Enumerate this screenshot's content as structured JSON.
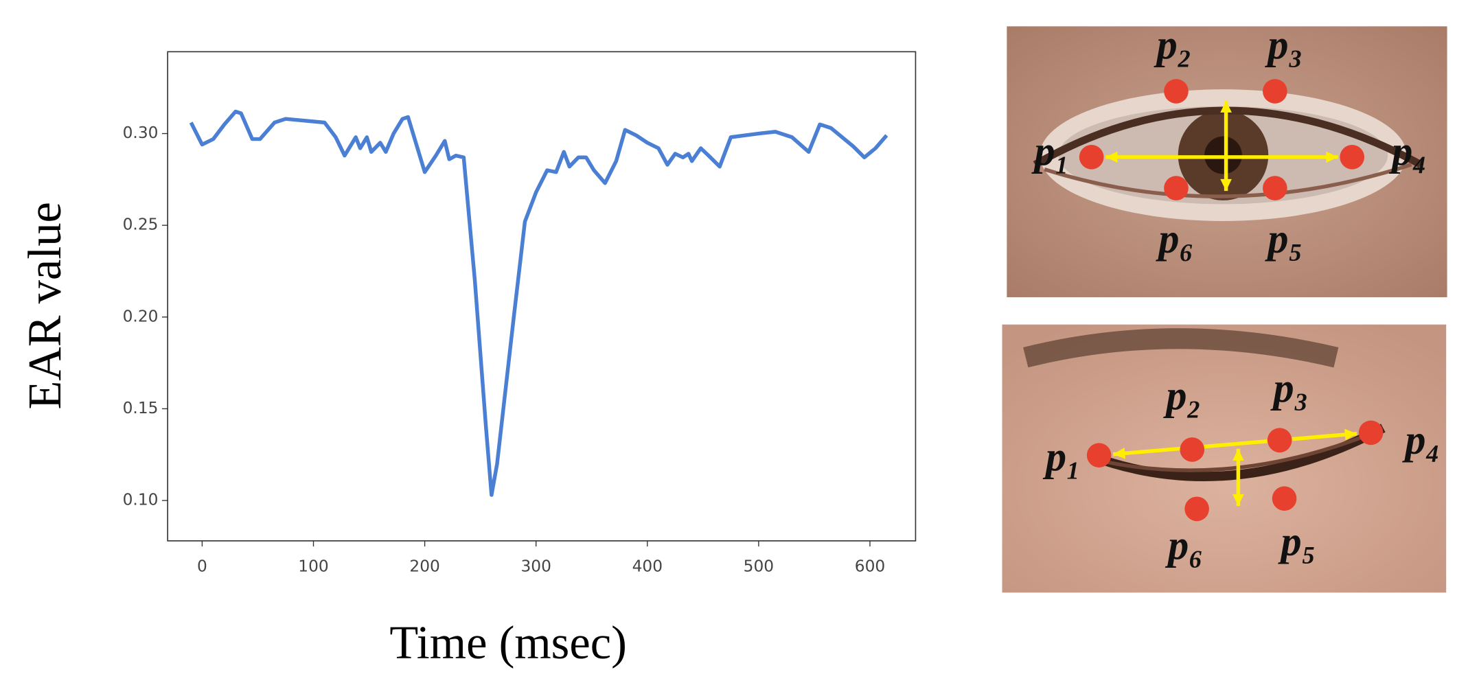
{
  "chart_data": {
    "type": "line",
    "xlabel": "Time (msec)",
    "ylabel": "EAR value",
    "x": [
      -10,
      0,
      10,
      20,
      30,
      35,
      45,
      52,
      65,
      75,
      110,
      120,
      128,
      138,
      142,
      148,
      152,
      160,
      165,
      172,
      180,
      185,
      192,
      200,
      210,
      218,
      222,
      228,
      235,
      245,
      255,
      260,
      265,
      280,
      290,
      300,
      310,
      318,
      325,
      330,
      338,
      345,
      352,
      362,
      372,
      380,
      390,
      400,
      410,
      418,
      425,
      432,
      437,
      440,
      448,
      455,
      465,
      475,
      500,
      515,
      530,
      545,
      555,
      565,
      585,
      595,
      605,
      615
    ],
    "series": [
      {
        "color": "#4a7fd4",
        "values": [
          0.306,
          0.294,
          0.297,
          0.305,
          0.312,
          0.311,
          0.297,
          0.297,
          0.306,
          0.308,
          0.306,
          0.298,
          0.288,
          0.298,
          0.292,
          0.298,
          0.29,
          0.295,
          0.29,
          0.3,
          0.308,
          0.309,
          0.295,
          0.279,
          0.288,
          0.296,
          0.286,
          0.288,
          0.287,
          0.22,
          0.14,
          0.103,
          0.12,
          0.2,
          0.252,
          0.268,
          0.28,
          0.279,
          0.29,
          0.282,
          0.287,
          0.287,
          0.28,
          0.273,
          0.285,
          0.302,
          0.299,
          0.295,
          0.292,
          0.283,
          0.289,
          0.287,
          0.289,
          0.285,
          0.292,
          0.288,
          0.282,
          0.298,
          0.3,
          0.301,
          0.298,
          0.29,
          0.305,
          0.303,
          0.293,
          0.287,
          0.292,
          0.299
        ]
      }
    ],
    "xlim": [
      -31,
      641
    ],
    "ylim": [
      0.078,
      0.3446
    ],
    "xticks": [
      0,
      100,
      200,
      300,
      400,
      500,
      600
    ],
    "yticks": [
      {
        "value": 0.1,
        "label": "0.10"
      },
      0.15,
      {
        "value": 0.2,
        "label": "0.20"
      },
      0.25,
      {
        "value": 0.3,
        "label": "0.30"
      }
    ]
  },
  "eyes": [
    {
      "labels": [
        "p₁",
        "p₂",
        "p₃",
        "p₄",
        "p₅",
        "p₆"
      ]
    },
    {
      "labels": [
        "p₁",
        "p₂",
        "p₃",
        "p₄",
        "p₅",
        "p₆"
      ]
    }
  ]
}
